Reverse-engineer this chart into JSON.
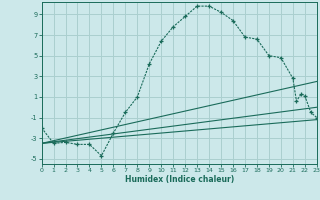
{
  "xlabel": "Humidex (Indice chaleur)",
  "bg_color": "#cce8ea",
  "grid_color": "#aacfcf",
  "line_color": "#1a6b5a",
  "x_ticks": [
    0,
    1,
    2,
    3,
    4,
    5,
    6,
    7,
    8,
    9,
    10,
    11,
    12,
    13,
    14,
    15,
    16,
    17,
    18,
    19,
    20,
    21,
    22,
    23
  ],
  "y_ticks": [
    -5,
    -3,
    -1,
    1,
    3,
    5,
    7,
    9
  ],
  "xlim": [
    0,
    23
  ],
  "ylim": [
    -5.5,
    10.2
  ],
  "main_curve_x": [
    0,
    1,
    2,
    3,
    4,
    5,
    6,
    7,
    8,
    9,
    10,
    11,
    12,
    13,
    14,
    15,
    16,
    17,
    18,
    19,
    20,
    21,
    21.3,
    21.7,
    22,
    22.5,
    23
  ],
  "main_curve_y": [
    -2.0,
    -3.5,
    -3.4,
    -3.6,
    -3.6,
    -4.7,
    -2.5,
    -0.5,
    1.0,
    4.2,
    6.4,
    7.8,
    8.8,
    9.8,
    9.8,
    9.2,
    8.4,
    6.8,
    6.6,
    5.0,
    4.8,
    2.8,
    0.6,
    1.3,
    1.1,
    -0.5,
    -1.0
  ],
  "line2_x": [
    0,
    23
  ],
  "line2_y": [
    -3.5,
    2.5
  ],
  "line3_x": [
    0,
    23
  ],
  "line3_y": [
    -3.5,
    0.0
  ],
  "line4_x": [
    0,
    23
  ],
  "line4_y": [
    -3.5,
    -1.2
  ]
}
